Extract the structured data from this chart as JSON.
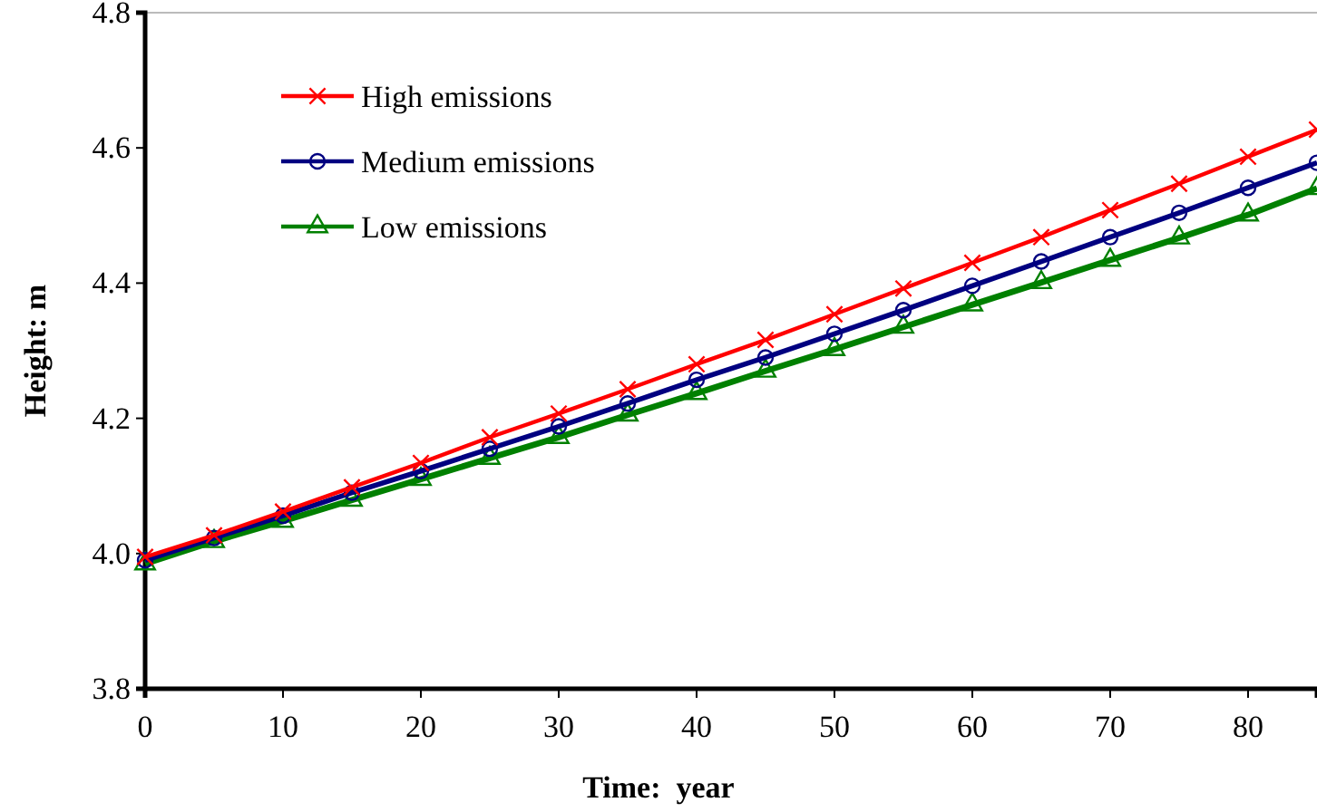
{
  "chart_data": {
    "type": "line",
    "xlabel": "Time:  year",
    "ylabel": "Height: m",
    "x": [
      0,
      5,
      10,
      15,
      20,
      25,
      30,
      35,
      40,
      45,
      50,
      55,
      60,
      65,
      70,
      75,
      80,
      85
    ],
    "xlim": [
      0,
      85
    ],
    "xticks": [
      0,
      10,
      20,
      30,
      40,
      50,
      60,
      70,
      80
    ],
    "ylim": [
      3.8,
      4.8
    ],
    "yticks": [
      {
        "value": 3.8,
        "label": "3.8"
      },
      {
        "value": 4.0,
        "label": "4.0"
      },
      {
        "value": 4.2,
        "label": "4.2"
      },
      {
        "value": 4.4,
        "label": "4.4"
      },
      {
        "value": 4.6,
        "label": "4.6"
      },
      {
        "value": 4.8,
        "label": "4.8"
      }
    ],
    "grid": false,
    "legend": "top left",
    "line_style": "solid",
    "series": [
      {
        "name": "High emissions",
        "color": "#ff0000",
        "marker": "cross",
        "values": [
          3.995,
          4.027,
          4.062,
          4.098,
          4.134,
          4.172,
          4.207,
          4.243,
          4.28,
          4.316,
          4.354,
          4.392,
          4.43,
          4.468,
          4.508,
          4.547,
          4.587,
          4.627
        ]
      },
      {
        "name": "Medium emissions",
        "color": "#000080",
        "marker": "circle",
        "values": [
          3.99,
          4.023,
          4.056,
          4.09,
          4.122,
          4.155,
          4.188,
          4.222,
          4.257,
          4.29,
          4.325,
          4.36,
          4.396,
          4.432,
          4.468,
          4.504,
          4.541,
          4.578
        ]
      },
      {
        "name": "Low emissions",
        "color": "#008000",
        "marker": "triangle",
        "values": [
          3.985,
          4.018,
          4.048,
          4.079,
          4.11,
          4.141,
          4.172,
          4.205,
          4.237,
          4.27,
          4.302,
          4.335,
          4.368,
          4.401,
          4.434,
          4.467,
          4.501,
          4.54
        ]
      }
    ]
  }
}
